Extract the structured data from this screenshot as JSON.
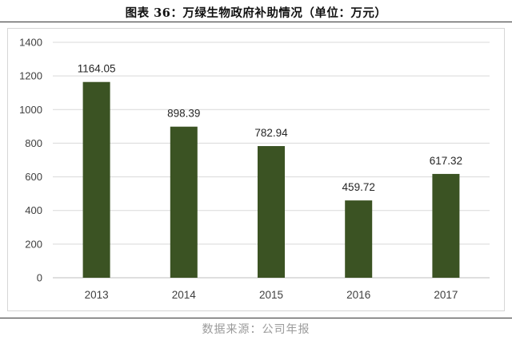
{
  "figure": {
    "title": "图表 36：万绿生物政府补助情况（单位：万元）",
    "source": "数据来源：公司年报"
  },
  "colors": {
    "bar": "#3b5323",
    "grid": "#d9d9d9",
    "axis_text": "#404040",
    "label_text": "#262626"
  },
  "chart_data": {
    "type": "bar",
    "categories": [
      "2013",
      "2014",
      "2015",
      "2016",
      "2017"
    ],
    "values": [
      1164.05,
      898.39,
      782.94,
      459.72,
      617.32
    ],
    "value_labels": [
      "1164.05",
      "898.39",
      "782.94",
      "459.72",
      "617.32"
    ],
    "yticks": [
      0,
      200,
      400,
      600,
      800,
      1000,
      1200,
      1400
    ],
    "ylim": [
      0,
      1400
    ],
    "grid": true,
    "legend": false
  }
}
